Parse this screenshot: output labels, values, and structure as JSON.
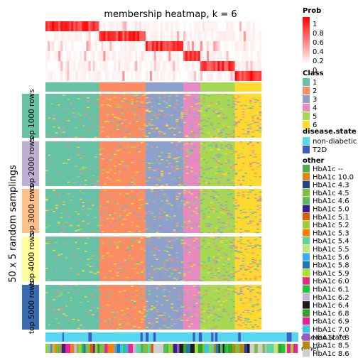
{
  "chart_data": {
    "type": "heatmap",
    "title": "membership heatmap, k = 6",
    "y_title": "50 x 5 random samplings",
    "row_groups": [
      "top 1000 rows",
      "top 2000 rows",
      "top 3000 rows",
      "top 4000 rows",
      "top 5000 rows"
    ],
    "row_group_colors": [
      "#66C2A5",
      "#BEAED4",
      "#FDC086",
      "#FFFF99",
      "#386CB0"
    ],
    "class_columns": [
      {
        "class": "1",
        "color": "#66C2A5",
        "share": 0.212
      },
      {
        "class": "2",
        "color": "#FC8D62",
        "share": 0.184
      },
      {
        "class": "3",
        "color": "#8DA0CB",
        "share": 0.149
      },
      {
        "class": "4",
        "color": "#E78AC3",
        "share": 0.067
      },
      {
        "class": "5",
        "color": "#A6D854",
        "share": 0.137
      },
      {
        "class": "6",
        "color": "#FFD92F",
        "share": 0.105
      }
    ],
    "prob_legend": {
      "title": "Prob",
      "ticks": [
        "1",
        "0.8",
        "0.6",
        "0.4",
        "0.2",
        "0"
      ],
      "color_low": "#FFFFFF",
      "color_high": "#FF0000"
    },
    "class_legend": {
      "title": "Class",
      "items": [
        {
          "label": "1",
          "color": "#66C2A5"
        },
        {
          "label": "2",
          "color": "#FC8D62"
        },
        {
          "label": "3",
          "color": "#8DA0CB"
        },
        {
          "label": "4",
          "color": "#E78AC3"
        },
        {
          "label": "5",
          "color": "#A6D854"
        },
        {
          "label": "6",
          "color": "#FFD92F"
        }
      ]
    },
    "disease_legend": {
      "title": "disease.state",
      "items": [
        {
          "label": "non-diabetic",
          "color": "#56D7F0"
        },
        {
          "label": "T2D",
          "color": "#3D5BC7"
        }
      ]
    },
    "other_legend": {
      "title": "other",
      "items": [
        {
          "label": "HbA1c --",
          "color": "#4DAF4A"
        },
        {
          "label": "HbA1c 10.0",
          "color": "#E08214"
        },
        {
          "label": "HbA1c 4.3",
          "color": "#2C3E8F"
        },
        {
          "label": "HbA1c 4.5",
          "color": "#7FBF3F"
        },
        {
          "label": "HbA1c 4.6",
          "color": "#5CB85C"
        },
        {
          "label": "HbA1c 5.0",
          "color": "#3B1F8C"
        },
        {
          "label": "HbA1c 5.1",
          "color": "#D95F02"
        },
        {
          "label": "HbA1c 5.2",
          "color": "#9ACD32"
        },
        {
          "label": "HbA1c 5.3",
          "color": "#FF7F00"
        },
        {
          "label": "HbA1c 5.4",
          "color": "#5DD39E"
        },
        {
          "label": "HbA1c 5.5",
          "color": "#C6E377"
        },
        {
          "label": "HbA1c 5.6",
          "color": "#3FA9F5"
        },
        {
          "label": "HbA1c 5.8",
          "color": "#1F78B4"
        },
        {
          "label": "HbA1c 5.9",
          "color": "#A6E22E"
        },
        {
          "label": "HbA1c 6.0",
          "color": "#E7298A"
        },
        {
          "label": "HbA1c 6.1",
          "color": "#1AC938"
        },
        {
          "label": "HbA1c 6.2",
          "color": "#CAB2D6"
        },
        {
          "label": "HbA1c 6.4",
          "color": "#1B1B1B"
        },
        {
          "label": "HbA1c 6.8",
          "color": "#33A02C"
        },
        {
          "label": "HbA1c 6.9",
          "color": "#F01E96"
        },
        {
          "label": "HbA1c 7.0",
          "color": "#36C9E0"
        },
        {
          "label": "HbA1c 7.8",
          "color": "#9B59D0"
        },
        {
          "label": "HbA1c 8.5",
          "color": "#B8860B"
        },
        {
          "label": "HbA1c 8.6",
          "color": "#CFCFCF"
        }
      ]
    },
    "bottom_annotations": [
      "disease.state",
      "other"
    ]
  }
}
